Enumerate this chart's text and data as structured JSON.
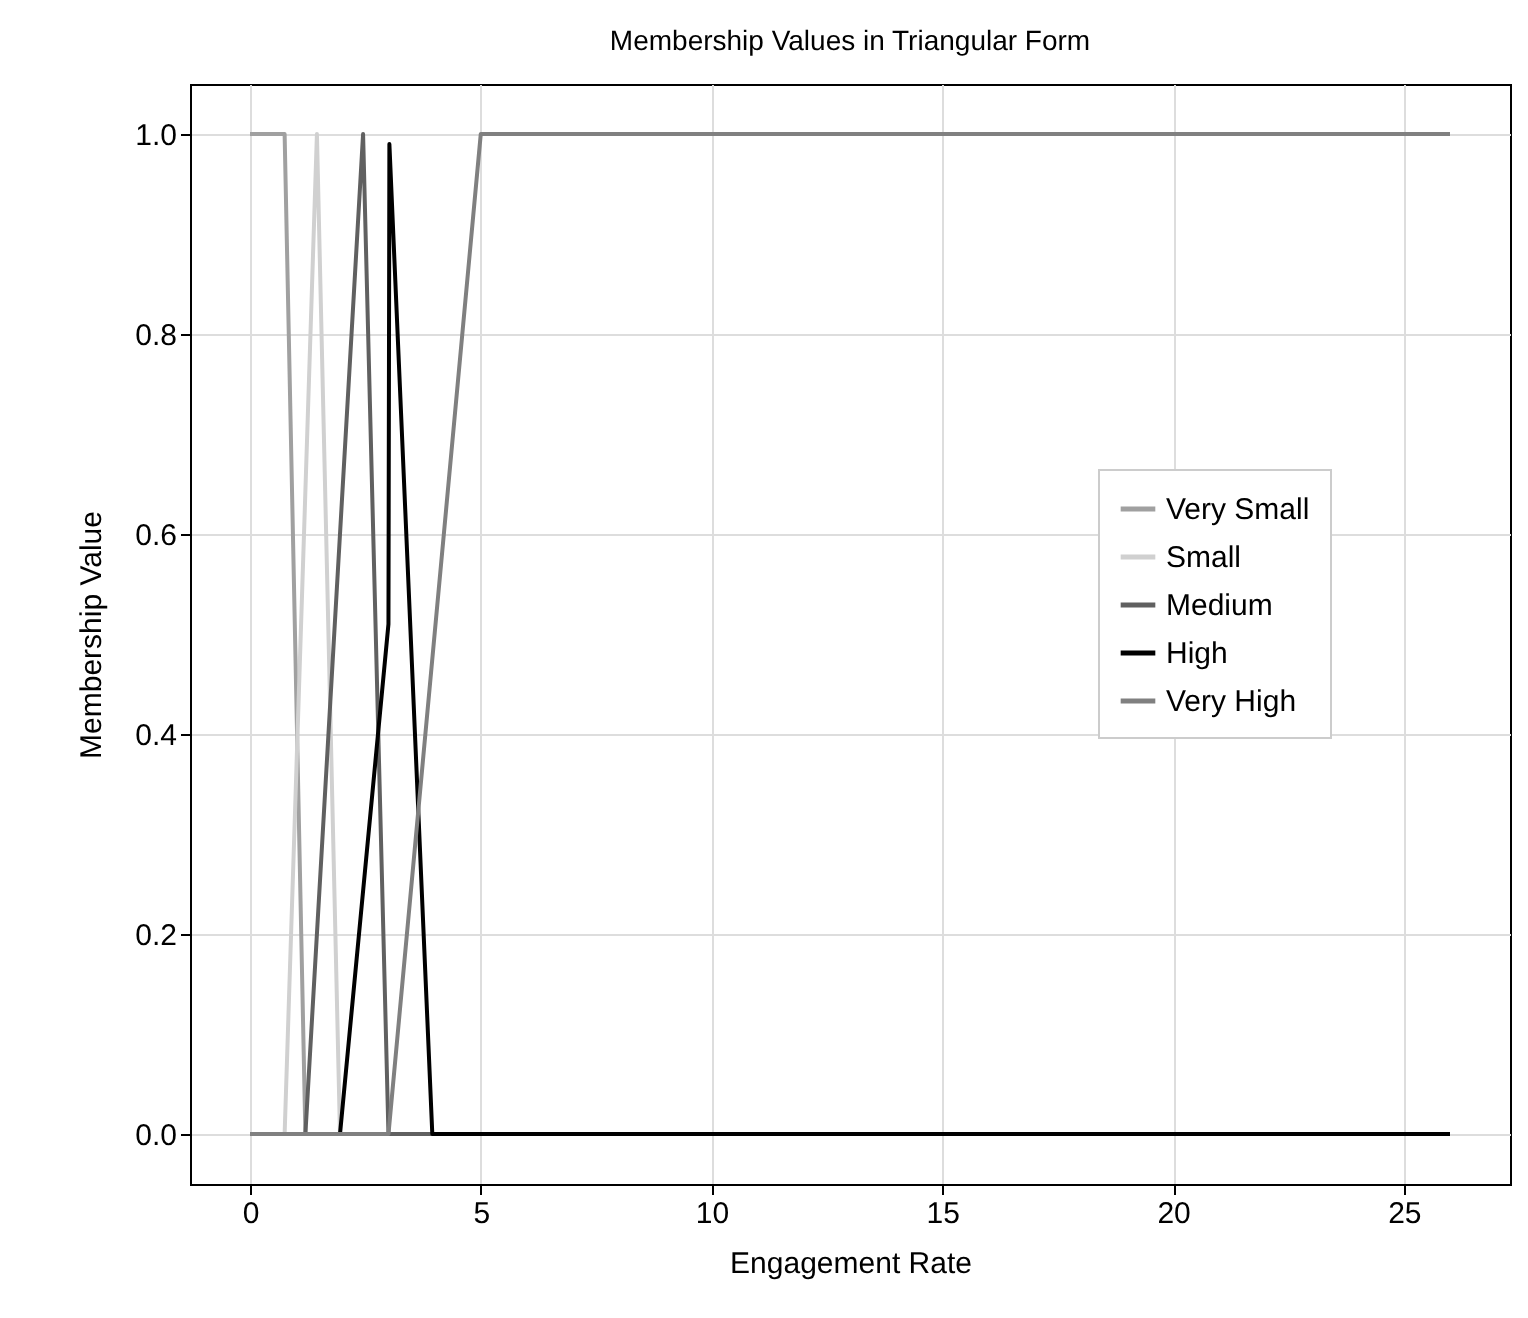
{
  "chart_data": {
    "type": "line",
    "title": "Membership Values in Triangular Form",
    "xlabel": "Engagement Rate",
    "ylabel": "Membership Value",
    "series": [
      {
        "name": "Very Small",
        "color": "#a0a0a0",
        "x": [
          0,
          0.75,
          1.2
        ],
        "values": [
          1,
          1,
          0
        ]
      },
      {
        "name": "Small",
        "color": "#d0d0d0",
        "x": [
          0,
          0.75,
          1.45,
          1.95,
          26
        ],
        "values": [
          0,
          0,
          1,
          0,
          0
        ]
      },
      {
        "name": "Medium",
        "color": "#606060",
        "x": [
          0,
          1.2,
          2.45,
          3.0,
          26
        ],
        "values": [
          0,
          0,
          1,
          0,
          0
        ]
      },
      {
        "name": "High",
        "color": "#000000",
        "x": [
          0,
          1.95,
          3.0,
          3.02,
          3.95,
          26
        ],
        "values": [
          0,
          0,
          0.51,
          0.99,
          0,
          0
        ]
      },
      {
        "name": "Very High",
        "color": "#808080",
        "x": [
          0,
          3.0,
          5.0,
          26
        ],
        "values": [
          0,
          0,
          1,
          1
        ]
      }
    ],
    "xlim": [
      -1.3,
      27.3
    ],
    "xticks": [
      0,
      5,
      10,
      15,
      20,
      25
    ],
    "ylim": [
      -0.05,
      1.05
    ],
    "yticks": [
      {
        "value": 0,
        "label": "0.0"
      },
      {
        "value": 0.2,
        "label": "0.2"
      },
      {
        "value": 0.4,
        "label": "0.4"
      },
      {
        "value": 0.6,
        "label": "0.6"
      },
      {
        "value": 0.8,
        "label": "0.8"
      },
      {
        "value": 1,
        "label": "1.0"
      }
    ],
    "grid": true,
    "legend": "right",
    "marker": "none",
    "line_style": "solid"
  }
}
